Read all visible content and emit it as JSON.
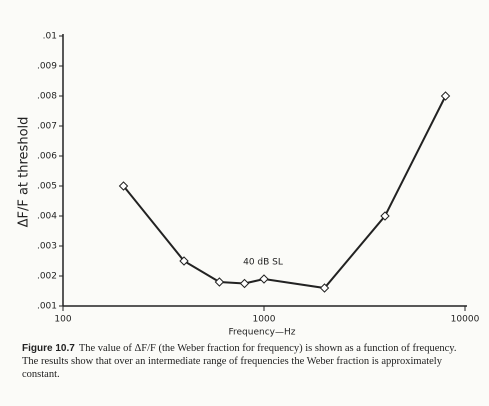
{
  "chart_data": {
    "type": "line",
    "x_label": "Frequency—Hz",
    "y_label": "ΔF/F at threshold",
    "annotation": "40 dB SL",
    "x_log": true,
    "xlim": [
      100,
      10000
    ],
    "xticks": [
      100,
      1000,
      10000
    ],
    "ylim": [
      0.001,
      0.01
    ],
    "yticks": [
      {
        "value": 0.001,
        "label": ".001"
      },
      {
        "value": 0.002,
        "label": ".002"
      },
      {
        "value": 0.003,
        "label": ".003"
      },
      {
        "value": 0.004,
        "label": ".004"
      },
      {
        "value": 0.005,
        "label": ".005"
      },
      {
        "value": 0.006,
        "label": ".006"
      },
      {
        "value": 0.007,
        "label": ".007"
      },
      {
        "value": 0.008,
        "label": ".008"
      },
      {
        "value": 0.009,
        "label": ".009"
      },
      {
        "value": 0.01,
        "label": ".01"
      }
    ],
    "color": "#222222",
    "x": [
      200,
      400,
      600,
      800,
      1000,
      2000,
      4000,
      8000
    ],
    "values": [
      0.005,
      0.0025,
      0.0018,
      0.00175,
      0.0019,
      0.0016,
      0.004,
      0.008
    ]
  },
  "caption": {
    "label": "Figure 10.7",
    "text": "The value of ΔF/F (the Weber fraction for frequency) is shown as a function of frequency. The results show that over an intermediate range of frequencies the Weber fraction is approximately constant."
  }
}
